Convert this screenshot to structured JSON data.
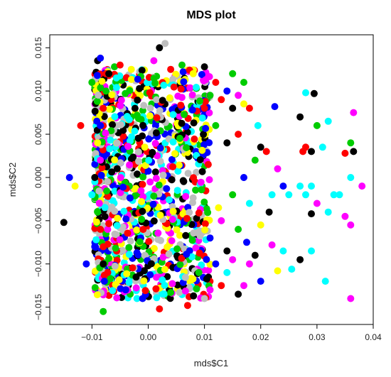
{
  "chart_data": {
    "type": "scatter",
    "title": "MDS plot",
    "xlabel": "mds$C1",
    "ylabel": "mds$C2",
    "xlim": [
      -0.0175,
      0.04
    ],
    "ylim": [
      -0.017,
      0.0165
    ],
    "x_ticks": [
      -0.01,
      0.0,
      0.01,
      0.02,
      0.03,
      0.04
    ],
    "x_tick_labels": [
      "−0.01",
      "0.00",
      "0.01",
      "0.02",
      "0.03",
      "0.04"
    ],
    "y_ticks": [
      -0.015,
      -0.01,
      -0.005,
      0.0,
      0.005,
      0.01,
      0.015
    ],
    "y_tick_labels": [
      "−0.015",
      "−0.010",
      "−0.005",
      "0.000",
      "0.005",
      "0.010",
      "0.015"
    ],
    "grid": false,
    "legend": "none",
    "palette": [
      "#000000",
      "#ff0000",
      "#00cc00",
      "#0000ff",
      "#00ffff",
      "#ff00ff",
      "#ffff00",
      "#bebebe"
    ],
    "points": [
      {
        "x": -0.015,
        "y": -0.0052,
        "c": 0
      },
      {
        "x": -0.014,
        "y": 0.0,
        "c": 3
      },
      {
        "x": -0.013,
        "y": -0.001,
        "c": 6
      },
      {
        "x": -0.012,
        "y": 0.006,
        "c": 1
      },
      {
        "x": -0.011,
        "y": -0.01,
        "c": 3
      },
      {
        "x": -0.01,
        "y": 0.011,
        "c": 2
      },
      {
        "x": -0.009,
        "y": 0.0135,
        "c": 0
      },
      {
        "x": -0.0085,
        "y": 0.0138,
        "c": 3
      },
      {
        "x": -0.008,
        "y": -0.0155,
        "c": 2
      },
      {
        "x": -0.0075,
        "y": 0.012,
        "c": 1
      },
      {
        "x": -0.006,
        "y": 0.0128,
        "c": 2
      },
      {
        "x": -0.005,
        "y": 0.013,
        "c": 1
      },
      {
        "x": -0.004,
        "y": -0.013,
        "c": 3
      },
      {
        "x": -0.003,
        "y": 0.0125,
        "c": 6
      },
      {
        "x": -0.002,
        "y": -0.014,
        "c": 4
      },
      {
        "x": 0.001,
        "y": 0.0135,
        "c": 5
      },
      {
        "x": 0.002,
        "y": 0.015,
        "c": 0
      },
      {
        "x": 0.003,
        "y": 0.0155,
        "c": 7
      },
      {
        "x": 0.004,
        "y": 0.0125,
        "c": 1
      },
      {
        "x": 0.006,
        "y": 0.013,
        "c": 2
      },
      {
        "x": 0.008,
        "y": 0.012,
        "c": 6
      },
      {
        "x": 0.01,
        "y": 0.0128,
        "c": 0
      },
      {
        "x": 0.012,
        "y": 0.011,
        "c": 1
      },
      {
        "x": 0.014,
        "y": 0.01,
        "c": 3
      },
      {
        "x": 0.015,
        "y": 0.012,
        "c": 2
      },
      {
        "x": 0.016,
        "y": 0.0095,
        "c": 5
      },
      {
        "x": 0.017,
        "y": 0.011,
        "c": 2
      },
      {
        "x": 0.018,
        "y": 0.008,
        "c": 1
      },
      {
        "x": 0.0195,
        "y": 0.006,
        "c": 4
      },
      {
        "x": 0.0225,
        "y": 0.0082,
        "c": 3
      },
      {
        "x": 0.028,
        "y": 0.0098,
        "c": 4
      },
      {
        "x": 0.0295,
        "y": 0.0097,
        "c": 0
      },
      {
        "x": 0.03,
        "y": 0.006,
        "c": 2
      },
      {
        "x": 0.032,
        "y": 0.0065,
        "c": 4
      },
      {
        "x": 0.036,
        "y": 0.004,
        "c": 2
      },
      {
        "x": 0.0365,
        "y": 0.0075,
        "c": 5
      },
      {
        "x": 0.029,
        "y": 0.003,
        "c": 0
      },
      {
        "x": 0.031,
        "y": 0.0035,
        "c": 4
      },
      {
        "x": 0.027,
        "y": 0.007,
        "c": 0
      },
      {
        "x": 0.028,
        "y": 0.0035,
        "c": 1
      },
      {
        "x": 0.0275,
        "y": 0.003,
        "c": 1
      },
      {
        "x": 0.0365,
        "y": 0.003,
        "c": 0
      },
      {
        "x": 0.035,
        "y": 0.0028,
        "c": 1
      },
      {
        "x": 0.029,
        "y": -0.001,
        "c": 4
      },
      {
        "x": 0.033,
        "y": -0.002,
        "c": 4
      },
      {
        "x": 0.034,
        "y": -0.002,
        "c": 4
      },
      {
        "x": 0.036,
        "y": 0.0,
        "c": 4
      },
      {
        "x": 0.038,
        "y": -0.001,
        "c": 5
      },
      {
        "x": 0.027,
        "y": -0.001,
        "c": 4
      },
      {
        "x": 0.028,
        "y": -0.002,
        "c": 4
      },
      {
        "x": 0.03,
        "y": -0.003,
        "c": 5
      },
      {
        "x": 0.032,
        "y": -0.004,
        "c": 4
      },
      {
        "x": 0.029,
        "y": -0.0042,
        "c": 0
      },
      {
        "x": 0.035,
        "y": -0.0045,
        "c": 5
      },
      {
        "x": 0.036,
        "y": -0.0055,
        "c": 5
      },
      {
        "x": 0.036,
        "y": -0.014,
        "c": 5
      },
      {
        "x": 0.029,
        "y": -0.0085,
        "c": 4
      },
      {
        "x": 0.027,
        "y": -0.0095,
        "c": 0
      },
      {
        "x": 0.0255,
        "y": -0.0106,
        "c": 4
      },
      {
        "x": 0.0315,
        "y": -0.012,
        "c": 4
      },
      {
        "x": 0.022,
        "y": -0.0078,
        "c": 5
      },
      {
        "x": 0.024,
        "y": -0.0085,
        "c": 4
      },
      {
        "x": 0.023,
        "y": -0.0108,
        "c": 6
      },
      {
        "x": 0.02,
        "y": -0.012,
        "c": 3
      },
      {
        "x": 0.019,
        "y": -0.009,
        "c": 0
      },
      {
        "x": 0.018,
        "y": -0.01,
        "c": 5
      },
      {
        "x": 0.017,
        "y": -0.0125,
        "c": 5
      },
      {
        "x": 0.016,
        "y": -0.0135,
        "c": 0
      },
      {
        "x": 0.015,
        "y": -0.0095,
        "c": 5
      },
      {
        "x": 0.014,
        "y": -0.011,
        "c": 4
      },
      {
        "x": 0.013,
        "y": -0.0125,
        "c": 1
      },
      {
        "x": 0.012,
        "y": -0.01,
        "c": 3
      },
      {
        "x": 0.011,
        "y": -0.013,
        "c": 5
      },
      {
        "x": 0.01,
        "y": -0.014,
        "c": 7
      },
      {
        "x": 0.009,
        "y": -0.011,
        "c": 2
      },
      {
        "x": 0.007,
        "y": -0.0148,
        "c": 1
      },
      {
        "x": 0.002,
        "y": -0.0152,
        "c": 1
      },
      {
        "x": -0.001,
        "y": -0.014,
        "c": 3
      },
      {
        "x": 0.0215,
        "y": -0.004,
        "c": 0
      },
      {
        "x": 0.02,
        "y": -0.0055,
        "c": 6
      },
      {
        "x": 0.022,
        "y": -0.002,
        "c": 4
      },
      {
        "x": 0.023,
        "y": 0.001,
        "c": 5
      },
      {
        "x": 0.024,
        "y": -0.001,
        "c": 3
      },
      {
        "x": 0.025,
        "y": -0.002,
        "c": 4
      },
      {
        "x": 0.021,
        "y": 0.003,
        "c": 1
      },
      {
        "x": 0.02,
        "y": 0.0035,
        "c": 0
      },
      {
        "x": 0.019,
        "y": 0.002,
        "c": 2
      },
      {
        "x": 0.018,
        "y": -0.003,
        "c": 4
      },
      {
        "x": 0.017,
        "y": 0.0,
        "c": 3
      },
      {
        "x": 0.016,
        "y": 0.005,
        "c": 1
      },
      {
        "x": 0.015,
        "y": -0.002,
        "c": 2
      },
      {
        "x": 0.014,
        "y": 0.004,
        "c": 0
      },
      {
        "x": 0.013,
        "y": -0.005,
        "c": 5
      },
      {
        "x": 0.012,
        "y": 0.006,
        "c": 2
      },
      {
        "x": 0.011,
        "y": -0.007,
        "c": 3
      },
      {
        "x": 0.01,
        "y": 0.008,
        "c": 1
      },
      {
        "x": 0.017,
        "y": 0.0085,
        "c": 6
      },
      {
        "x": 0.015,
        "y": 0.008,
        "c": 0
      },
      {
        "x": 0.013,
        "y": 0.009,
        "c": 1
      },
      {
        "x": 0.011,
        "y": 0.0095,
        "c": 2
      },
      {
        "x": 0.0125,
        "y": -0.0035,
        "c": 6
      },
      {
        "x": 0.014,
        "y": -0.0085,
        "c": 0
      },
      {
        "x": 0.016,
        "y": -0.006,
        "c": 2
      },
      {
        "x": 0.0175,
        "y": -0.0075,
        "c": 3
      },
      {
        "x": -0.008,
        "y": -0.01,
        "c": 0
      },
      {
        "x": -0.0095,
        "y": -0.008,
        "c": 3
      },
      {
        "x": -0.0085,
        "y": -0.006,
        "c": 1
      },
      {
        "x": -0.009,
        "y": -0.004,
        "c": 2
      },
      {
        "x": -0.01,
        "y": -0.002,
        "c": 4
      },
      {
        "x": -0.0095,
        "y": 0.0,
        "c": 0
      },
      {
        "x": -0.0085,
        "y": 0.002,
        "c": 5
      },
      {
        "x": -0.009,
        "y": 0.004,
        "c": 6
      },
      {
        "x": -0.0085,
        "y": 0.006,
        "c": 3
      },
      {
        "x": -0.008,
        "y": 0.008,
        "c": 1
      },
      {
        "x": -0.0075,
        "y": 0.01,
        "c": 2
      },
      {
        "x": -0.007,
        "y": 0.012,
        "c": 0
      },
      {
        "x": -0.0078,
        "y": -0.012,
        "c": 3
      },
      {
        "x": -0.0072,
        "y": -0.011,
        "c": 1
      }
    ],
    "dense_cluster": {
      "x_range": [
        -0.0095,
        0.011
      ],
      "y_range": [
        -0.014,
        0.0125
      ],
      "count": 1200
    }
  }
}
